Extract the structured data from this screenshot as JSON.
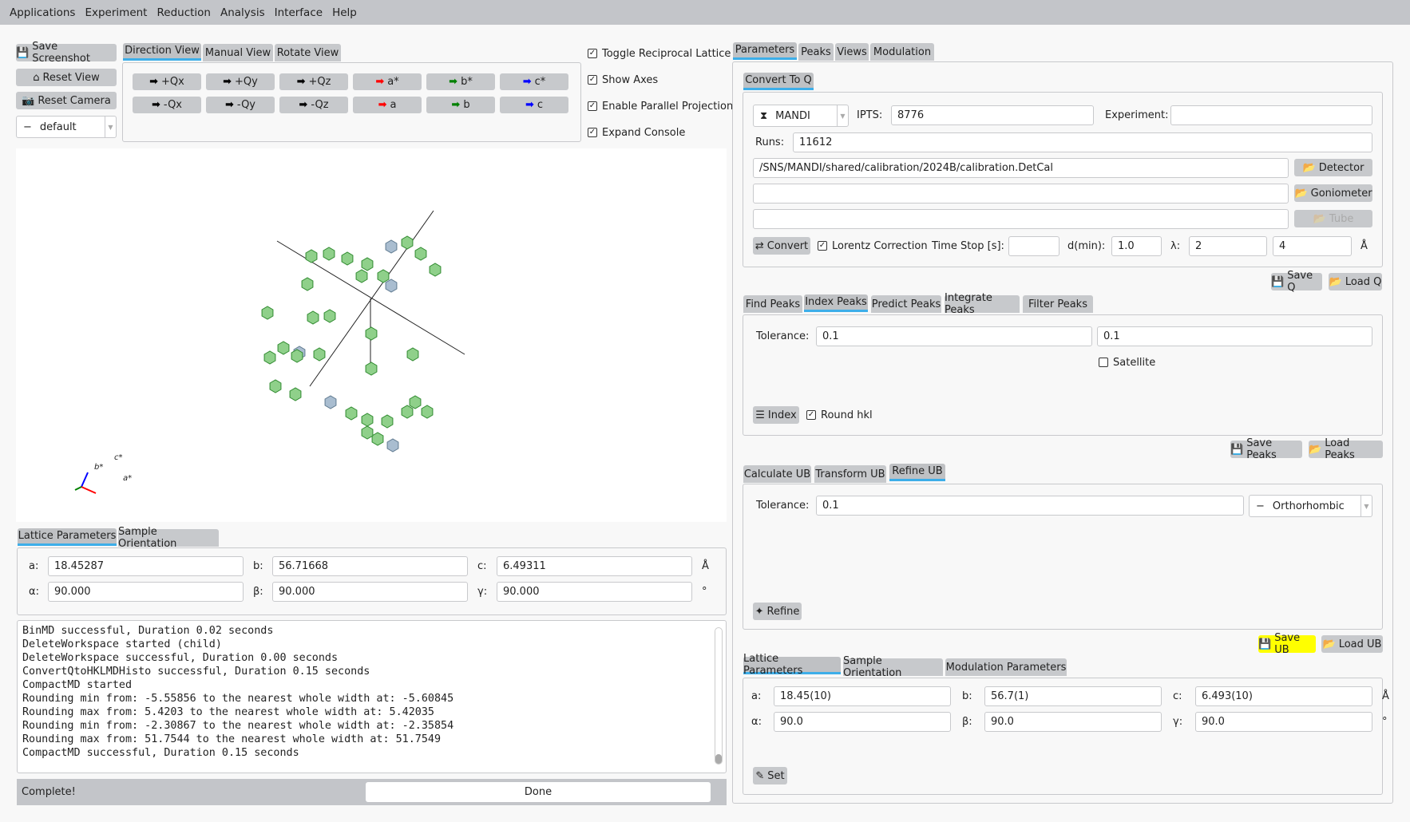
{
  "menu": [
    "Applications",
    "Experiment",
    "Reduction",
    "Analysis",
    "Interface",
    "Help"
  ],
  "left": {
    "save_screenshot": "Save Screenshot",
    "reset_view": "Reset View",
    "reset_camera": "Reset Camera",
    "camera_combo": "default",
    "view_tabs": [
      "Direction View",
      "Manual View",
      "Rotate View"
    ],
    "direction_buttons": [
      {
        "label": "+Qx",
        "color": "#000000"
      },
      {
        "label": "+Qy",
        "color": "#000000"
      },
      {
        "label": "+Qz",
        "color": "#000000"
      },
      {
        "label": "a*",
        "color": "#ff0000"
      },
      {
        "label": "b*",
        "color": "#008000"
      },
      {
        "label": "c*",
        "color": "#0000ff"
      },
      {
        "label": "-Qx",
        "color": "#000000"
      },
      {
        "label": "-Qy",
        "color": "#000000"
      },
      {
        "label": "-Qz",
        "color": "#000000"
      },
      {
        "label": "a",
        "color": "#ff0000"
      },
      {
        "label": "b",
        "color": "#008000"
      },
      {
        "label": "c",
        "color": "#0000ff"
      }
    ],
    "checks": [
      {
        "label": "Toggle Reciprocal Lattice",
        "checked": true
      },
      {
        "label": "Show Axes",
        "checked": true
      },
      {
        "label": "Enable Parallel Projection",
        "checked": true
      },
      {
        "label": "Expand Console",
        "checked": true
      }
    ],
    "axes_labels": {
      "a": "a*",
      "b": "b*",
      "c": "c*"
    },
    "lattice_tabs": [
      "Lattice Parameters",
      "Sample Orientation"
    ],
    "lattice": {
      "a_label": "a:",
      "a": "18.45287",
      "b_label": "b:",
      "b": "56.71668",
      "c_label": "c:",
      "c": "6.49311",
      "alpha_label": "α:",
      "alpha": "90.000",
      "beta_label": "β:",
      "beta": "90.000",
      "gamma_label": "γ:",
      "gamma": "90.000",
      "len_unit": "Å",
      "ang_unit": "°"
    },
    "console": [
      "BinMD successful, Duration 0.02 seconds",
      "DeleteWorkspace started (child)",
      "DeleteWorkspace successful, Duration 0.00 seconds",
      "ConvertQtoHKLMDHisto successful, Duration 0.15 seconds",
      "CompactMD started",
      "Rounding min from: -5.55856 to the nearest whole width at: -5.60845",
      "Rounding max from: 5.4203 to the nearest whole width at: 5.42035",
      "Rounding min from: -2.30867 to the nearest whole width at: -2.35854",
      "Rounding max from: 51.7544 to the nearest whole width at: 51.7549",
      "CompactMD successful, Duration 0.15 seconds"
    ],
    "status": "Complete!",
    "progress_text": "Done",
    "progress": 100
  },
  "right": {
    "tabs": [
      "Parameters",
      "Peaks",
      "Views",
      "Modulation"
    ],
    "convert_tab": "Convert To Q",
    "instrument": "MANDI",
    "ipts_label": "IPTS:",
    "ipts": "8776",
    "experiment_label": "Experiment:",
    "experiment": "",
    "runs_label": "Runs:",
    "runs": "11612",
    "detector_path": "/SNS/MANDI/shared/calibration/2024B/calibration.DetCal",
    "detector_btn": "Detector",
    "goniometer_path": "",
    "goniometer_btn": "Goniometer",
    "tube_path": "",
    "tube_btn": "Tube",
    "convert_btn": "Convert",
    "lorentz": "Lorentz Correction",
    "time_stop_label": "Time Stop [s]:",
    "time_stop": "",
    "dmin_label": "d(min):",
    "dmin": "1.0",
    "lambda_label": "λ:",
    "lambda_min": "2",
    "lambda_max": "4",
    "lambda_unit": "Å",
    "save_q": "Save Q",
    "load_q": "Load Q",
    "peak_tabs": [
      "Find Peaks",
      "Index Peaks",
      "Predict Peaks",
      "Integrate Peaks",
      "Filter Peaks"
    ],
    "index": {
      "tol_label": "Tolerance:",
      "tol": "0.1",
      "tol2": "0.1",
      "satellite": "Satellite",
      "index_btn": "Index",
      "round_hkl": "Round hkl"
    },
    "save_peaks": "Save Peaks",
    "load_peaks": "Load Peaks",
    "ub_tabs": [
      "Calculate UB",
      "Transform UB",
      "Refine UB"
    ],
    "refine": {
      "tol_label": "Tolerance:",
      "tol": "0.1",
      "cell": "Orthorhombic",
      "refine_btn": "Refine"
    },
    "save_ub": "Save UB",
    "load_ub": "Load UB",
    "save_ub_color": "#ffff00",
    "lat_tabs": [
      "Lattice Parameters",
      "Sample Orientation",
      "Modulation Parameters"
    ],
    "lattice": {
      "a_label": "a:",
      "a": "18.45(10)",
      "b_label": "b:",
      "b": "56.7(1)",
      "c_label": "c:",
      "c": "6.493(10)",
      "alpha_label": "α:",
      "alpha": "90.0",
      "beta_label": "β:",
      "beta": "90.0",
      "gamma_label": "γ:",
      "gamma": "90.0",
      "len_unit": "Å",
      "ang_unit": "°"
    },
    "set_btn": "Set"
  }
}
